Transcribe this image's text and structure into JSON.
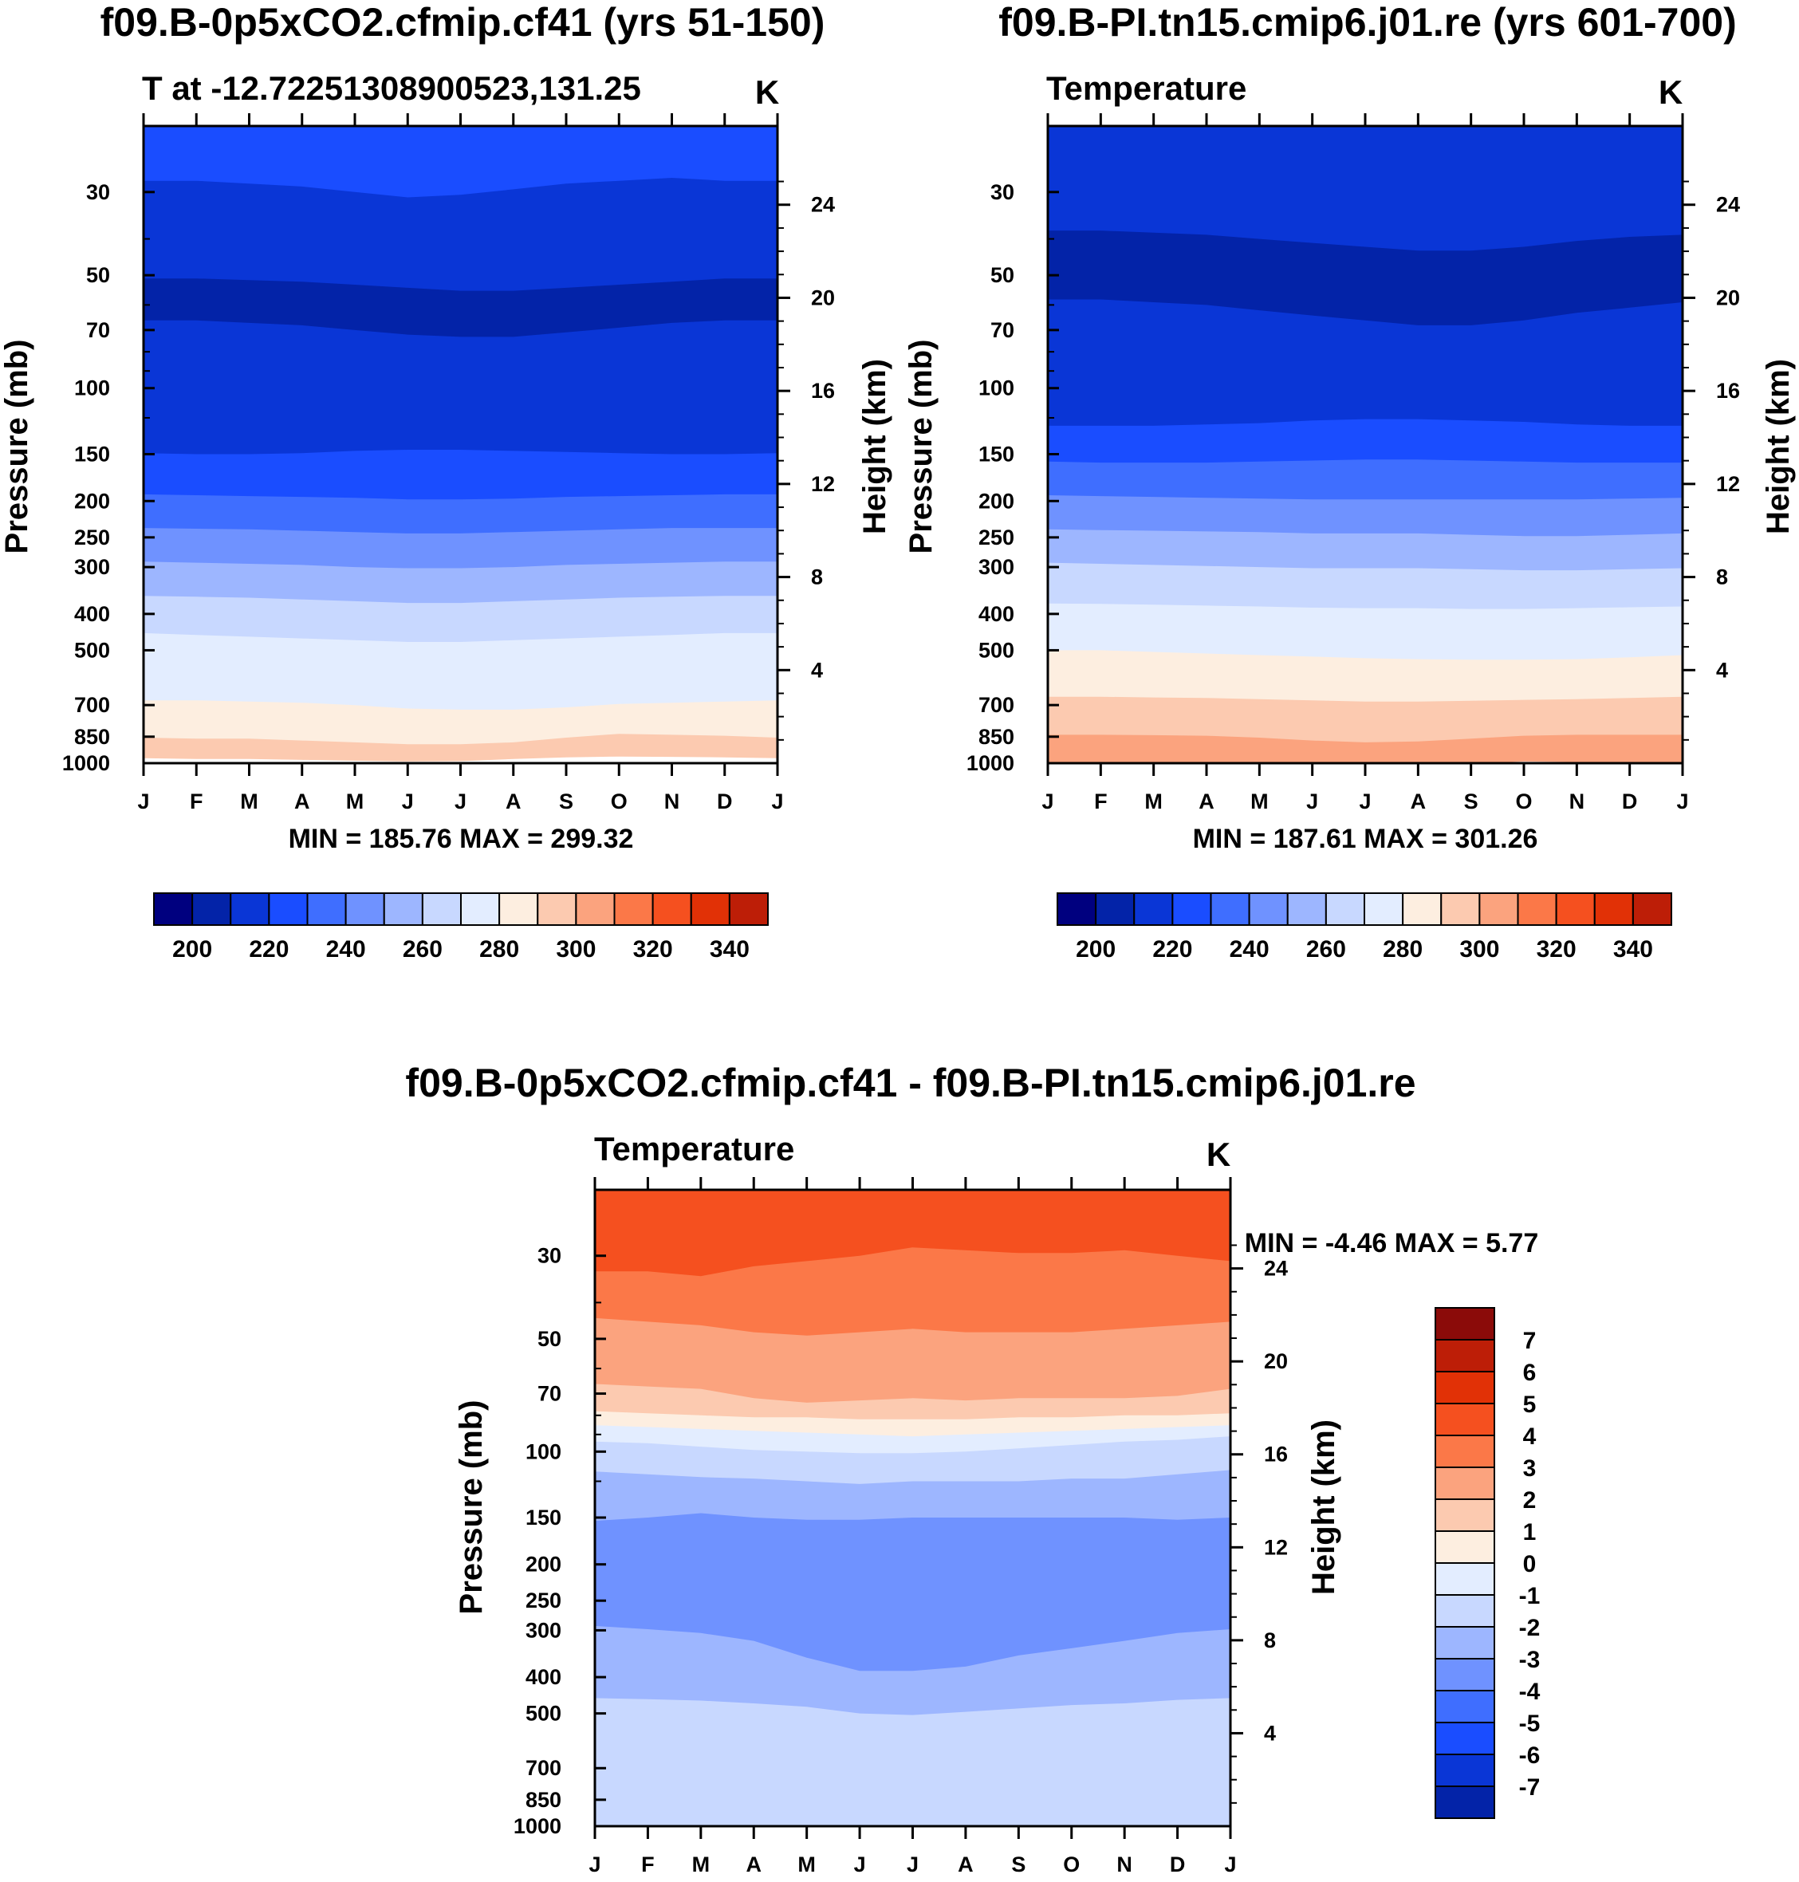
{
  "palette": [
    "#00007f",
    "#0323a8",
    "#0a36d6",
    "#1a4dff",
    "#3f6eff",
    "#6f92ff",
    "#9db6ff",
    "#c8d8ff",
    "#e3edff",
    "#fdeee0",
    "#fccab0",
    "#fba37e",
    "#fb7848",
    "#f5501f",
    "#e13106",
    "#bd1e07",
    "#8b0b09"
  ],
  "months": [
    "J",
    "F",
    "M",
    "A",
    "M",
    "J",
    "J",
    "A",
    "S",
    "O",
    "N",
    "D",
    "J"
  ],
  "chart_data": [
    {
      "type": "contour",
      "title": "f09.B-0p5xCO2.cfmip.cf41 (yrs 51-150)",
      "subtitle_left": "T at -12.72251308900523,131.25",
      "units": "K",
      "ylabel": "Pressure (mb)",
      "ylabel_right": "Height (km)",
      "p_ticks": [
        "30",
        "50",
        "70",
        "100",
        "150",
        "200",
        "250",
        "300",
        "400",
        "500",
        "700",
        "850",
        "1000"
      ],
      "z_ticks": [
        "4",
        "8",
        "12",
        "16",
        "20",
        "24"
      ],
      "ylim": [
        20,
        1000
      ],
      "minmax": "MIN = 185.76 MAX = 299.32",
      "colorbar_labels": [
        "200",
        "220",
        "240",
        "260",
        "280",
        "300",
        "320",
        "340"
      ],
      "boundaries": [
        {
          "level": 280,
          "p": [
            970,
            975,
            975,
            980,
            985,
            990,
            988,
            975,
            965,
            960,
            962,
            965,
            970
          ]
        },
        {
          "level": 270,
          "p": [
            855,
            860,
            860,
            870,
            880,
            890,
            890,
            880,
            855,
            835,
            840,
            845,
            855
          ]
        },
        {
          "level": 260,
          "p": [
            680,
            680,
            685,
            690,
            700,
            715,
            720,
            720,
            710,
            695,
            690,
            685,
            680
          ]
        },
        {
          "level": 250,
          "p": [
            450,
            455,
            460,
            465,
            470,
            475,
            475,
            470,
            465,
            460,
            455,
            450,
            450
          ]
        },
        {
          "level": 240,
          "p": [
            358,
            360,
            362,
            366,
            370,
            374,
            374,
            370,
            366,
            362,
            360,
            358,
            358
          ]
        },
        {
          "level": 230,
          "p": [
            290,
            292,
            294,
            296,
            300,
            302,
            302,
            300,
            296,
            294,
            292,
            290,
            290
          ]
        },
        {
          "level": 220,
          "p": [
            236,
            237,
            238,
            240,
            242,
            244,
            244,
            242,
            240,
            238,
            236,
            236,
            236
          ]
        },
        {
          "level": 210,
          "p": [
            192,
            193,
            194,
            195,
            196,
            198,
            198,
            197,
            195,
            194,
            193,
            192,
            192
          ]
        },
        {
          "level": 200,
          "p": [
            149,
            150,
            150,
            149,
            147,
            146,
            146,
            147,
            148,
            149,
            150,
            150,
            149
          ]
        },
        {
          "level": 190,
          "p": [
            66,
            66,
            67,
            68,
            70,
            72,
            73,
            73,
            71,
            69,
            67,
            66,
            66
          ]
        },
        {
          "level": 200,
          "p": [
            51,
            51,
            51.5,
            52,
            53,
            54,
            55,
            55,
            54,
            53,
            52,
            51,
            51
          ]
        },
        {
          "level": 210,
          "p": [
            28,
            28,
            28.5,
            29,
            30,
            31,
            30.5,
            29.5,
            28.5,
            28,
            27.5,
            28,
            28
          ]
        }
      ]
    },
    {
      "type": "contour",
      "title": "f09.B-PI.tn15.cmip6.j01.re (yrs 601-700)",
      "subtitle_left": "Temperature",
      "units": "K",
      "ylabel": "Pressure (mb)",
      "ylabel_right": "Height (km)",
      "p_ticks": [
        "30",
        "50",
        "70",
        "100",
        "150",
        "200",
        "250",
        "300",
        "400",
        "500",
        "700",
        "850",
        "1000"
      ],
      "z_ticks": [
        "4",
        "8",
        "12",
        "16",
        "20",
        "24"
      ],
      "ylim": [
        20,
        1000
      ],
      "minmax": "MIN = 187.61 MAX = 301.26",
      "colorbar_labels": [
        "200",
        "220",
        "240",
        "260",
        "280",
        "300",
        "320",
        "340"
      ],
      "boundaries": [
        {
          "level": 290,
          "p": [
            1001,
            1001,
            1001,
            1001,
            1001,
            1001,
            1001,
            1001,
            1001,
            990,
            993,
            1001,
            1001
          ]
        },
        {
          "level": 280,
          "p": [
            840,
            840,
            842,
            845,
            855,
            870,
            880,
            875,
            860,
            845,
            840,
            840,
            840
          ]
        },
        {
          "level": 270,
          "p": [
            665,
            665,
            668,
            670,
            675,
            680,
            685,
            685,
            682,
            678,
            675,
            670,
            665
          ]
        },
        {
          "level": 260,
          "p": [
            500,
            500,
            505,
            510,
            515,
            520,
            525,
            528,
            530,
            530,
            528,
            522,
            515
          ]
        },
        {
          "level": 250,
          "p": [
            375,
            376,
            378,
            380,
            382,
            385,
            386,
            386,
            388,
            388,
            386,
            384,
            382
          ]
        },
        {
          "level": 240,
          "p": [
            292,
            294,
            296,
            298,
            300,
            302,
            302,
            302,
            304,
            306,
            306,
            304,
            302
          ]
        },
        {
          "level": 230,
          "p": [
            238,
            239,
            240,
            241,
            242,
            244,
            244,
            244,
            246,
            248,
            248,
            246,
            244
          ]
        },
        {
          "level": 220,
          "p": [
            193,
            194,
            195,
            196,
            197,
            198,
            198,
            198,
            198,
            198,
            198,
            197,
            196
          ]
        },
        {
          "level": 210,
          "p": [
            157,
            158,
            158,
            158,
            157,
            156,
            155,
            155,
            156,
            157,
            158,
            158,
            158
          ]
        },
        {
          "level": 200,
          "p": [
            126,
            126,
            126,
            125,
            124,
            122,
            121,
            121,
            122,
            123,
            125,
            126,
            126
          ]
        },
        {
          "level": 190,
          "p": [
            58,
            58,
            59,
            60,
            62,
            64,
            66,
            68,
            68,
            66,
            63,
            61,
            59
          ]
        },
        {
          "level": 200,
          "p": [
            38,
            38,
            38.5,
            39,
            40,
            41,
            42,
            43,
            43,
            42,
            40.5,
            39.5,
            39
          ]
        }
      ]
    },
    {
      "type": "contour",
      "title": "f09.B-0p5xCO2.cfmip.cf41 - f09.B-PI.tn15.cmip6.j01.re",
      "subtitle_left": "Temperature",
      "units": "K",
      "ylabel": "Pressure (mb)",
      "ylabel_right": "Height (km)",
      "p_ticks": [
        "30",
        "50",
        "70",
        "100",
        "150",
        "200",
        "250",
        "300",
        "400",
        "500",
        "700",
        "850",
        "1000"
      ],
      "z_ticks": [
        "4",
        "8",
        "12",
        "16",
        "20",
        "24"
      ],
      "ylim": [
        20,
        1000
      ],
      "minmax": "MIN =  -4.46 MAX =    5.77",
      "colorbar_labels": [
        "7",
        "6",
        "5",
        "4",
        "3",
        "2",
        "1",
        "0",
        "-1",
        "-2",
        "-3",
        "-4",
        "-5",
        "-6",
        "-7"
      ],
      "boundaries": [
        {
          "level": -2,
          "p": [
            1001,
            1001,
            1001,
            1001,
            1001,
            1001,
            1001,
            1001,
            1001,
            1001,
            1001,
            1001,
            1001
          ]
        },
        {
          "level": -3,
          "p": [
            455,
            458,
            462,
            470,
            480,
            500,
            505,
            495,
            485,
            475,
            470,
            460,
            455
          ]
        },
        {
          "level": -4,
          "p": [
            292,
            298,
            305,
            320,
            355,
            385,
            385,
            375,
            350,
            335,
            320,
            305,
            298
          ]
        },
        {
          "level": -3,
          "p": [
            153,
            150,
            146,
            150,
            152,
            152,
            150,
            150,
            150,
            150,
            150,
            152,
            150
          ]
        },
        {
          "level": -2,
          "p": [
            113,
            115,
            117,
            118,
            120,
            122,
            120,
            120,
            120,
            118,
            118,
            115,
            112
          ]
        },
        {
          "level": -1,
          "p": [
            94,
            95,
            97,
            99,
            100,
            101,
            101,
            100,
            98,
            96,
            94,
            93,
            91
          ]
        },
        {
          "level": 0,
          "p": [
            85,
            86,
            87,
            88,
            89,
            90,
            91,
            90,
            89,
            88,
            87,
            86,
            85
          ]
        },
        {
          "level": 1,
          "p": [
            78,
            79,
            80,
            81,
            81,
            82,
            82,
            82,
            81,
            81,
            80,
            80,
            79
          ]
        },
        {
          "level": 2,
          "p": [
            66,
            67,
            68,
            72,
            74,
            73,
            72,
            73,
            72,
            72,
            72,
            71,
            68
          ]
        },
        {
          "level": 3,
          "p": [
            44,
            45,
            46,
            48,
            49,
            48,
            47,
            48,
            48,
            48,
            47,
            46,
            45
          ]
        },
        {
          "level": 4,
          "p": [
            33,
            33,
            34,
            32,
            31,
            30,
            28.5,
            29,
            29.5,
            29.5,
            29,
            30,
            31
          ]
        }
      ]
    }
  ]
}
